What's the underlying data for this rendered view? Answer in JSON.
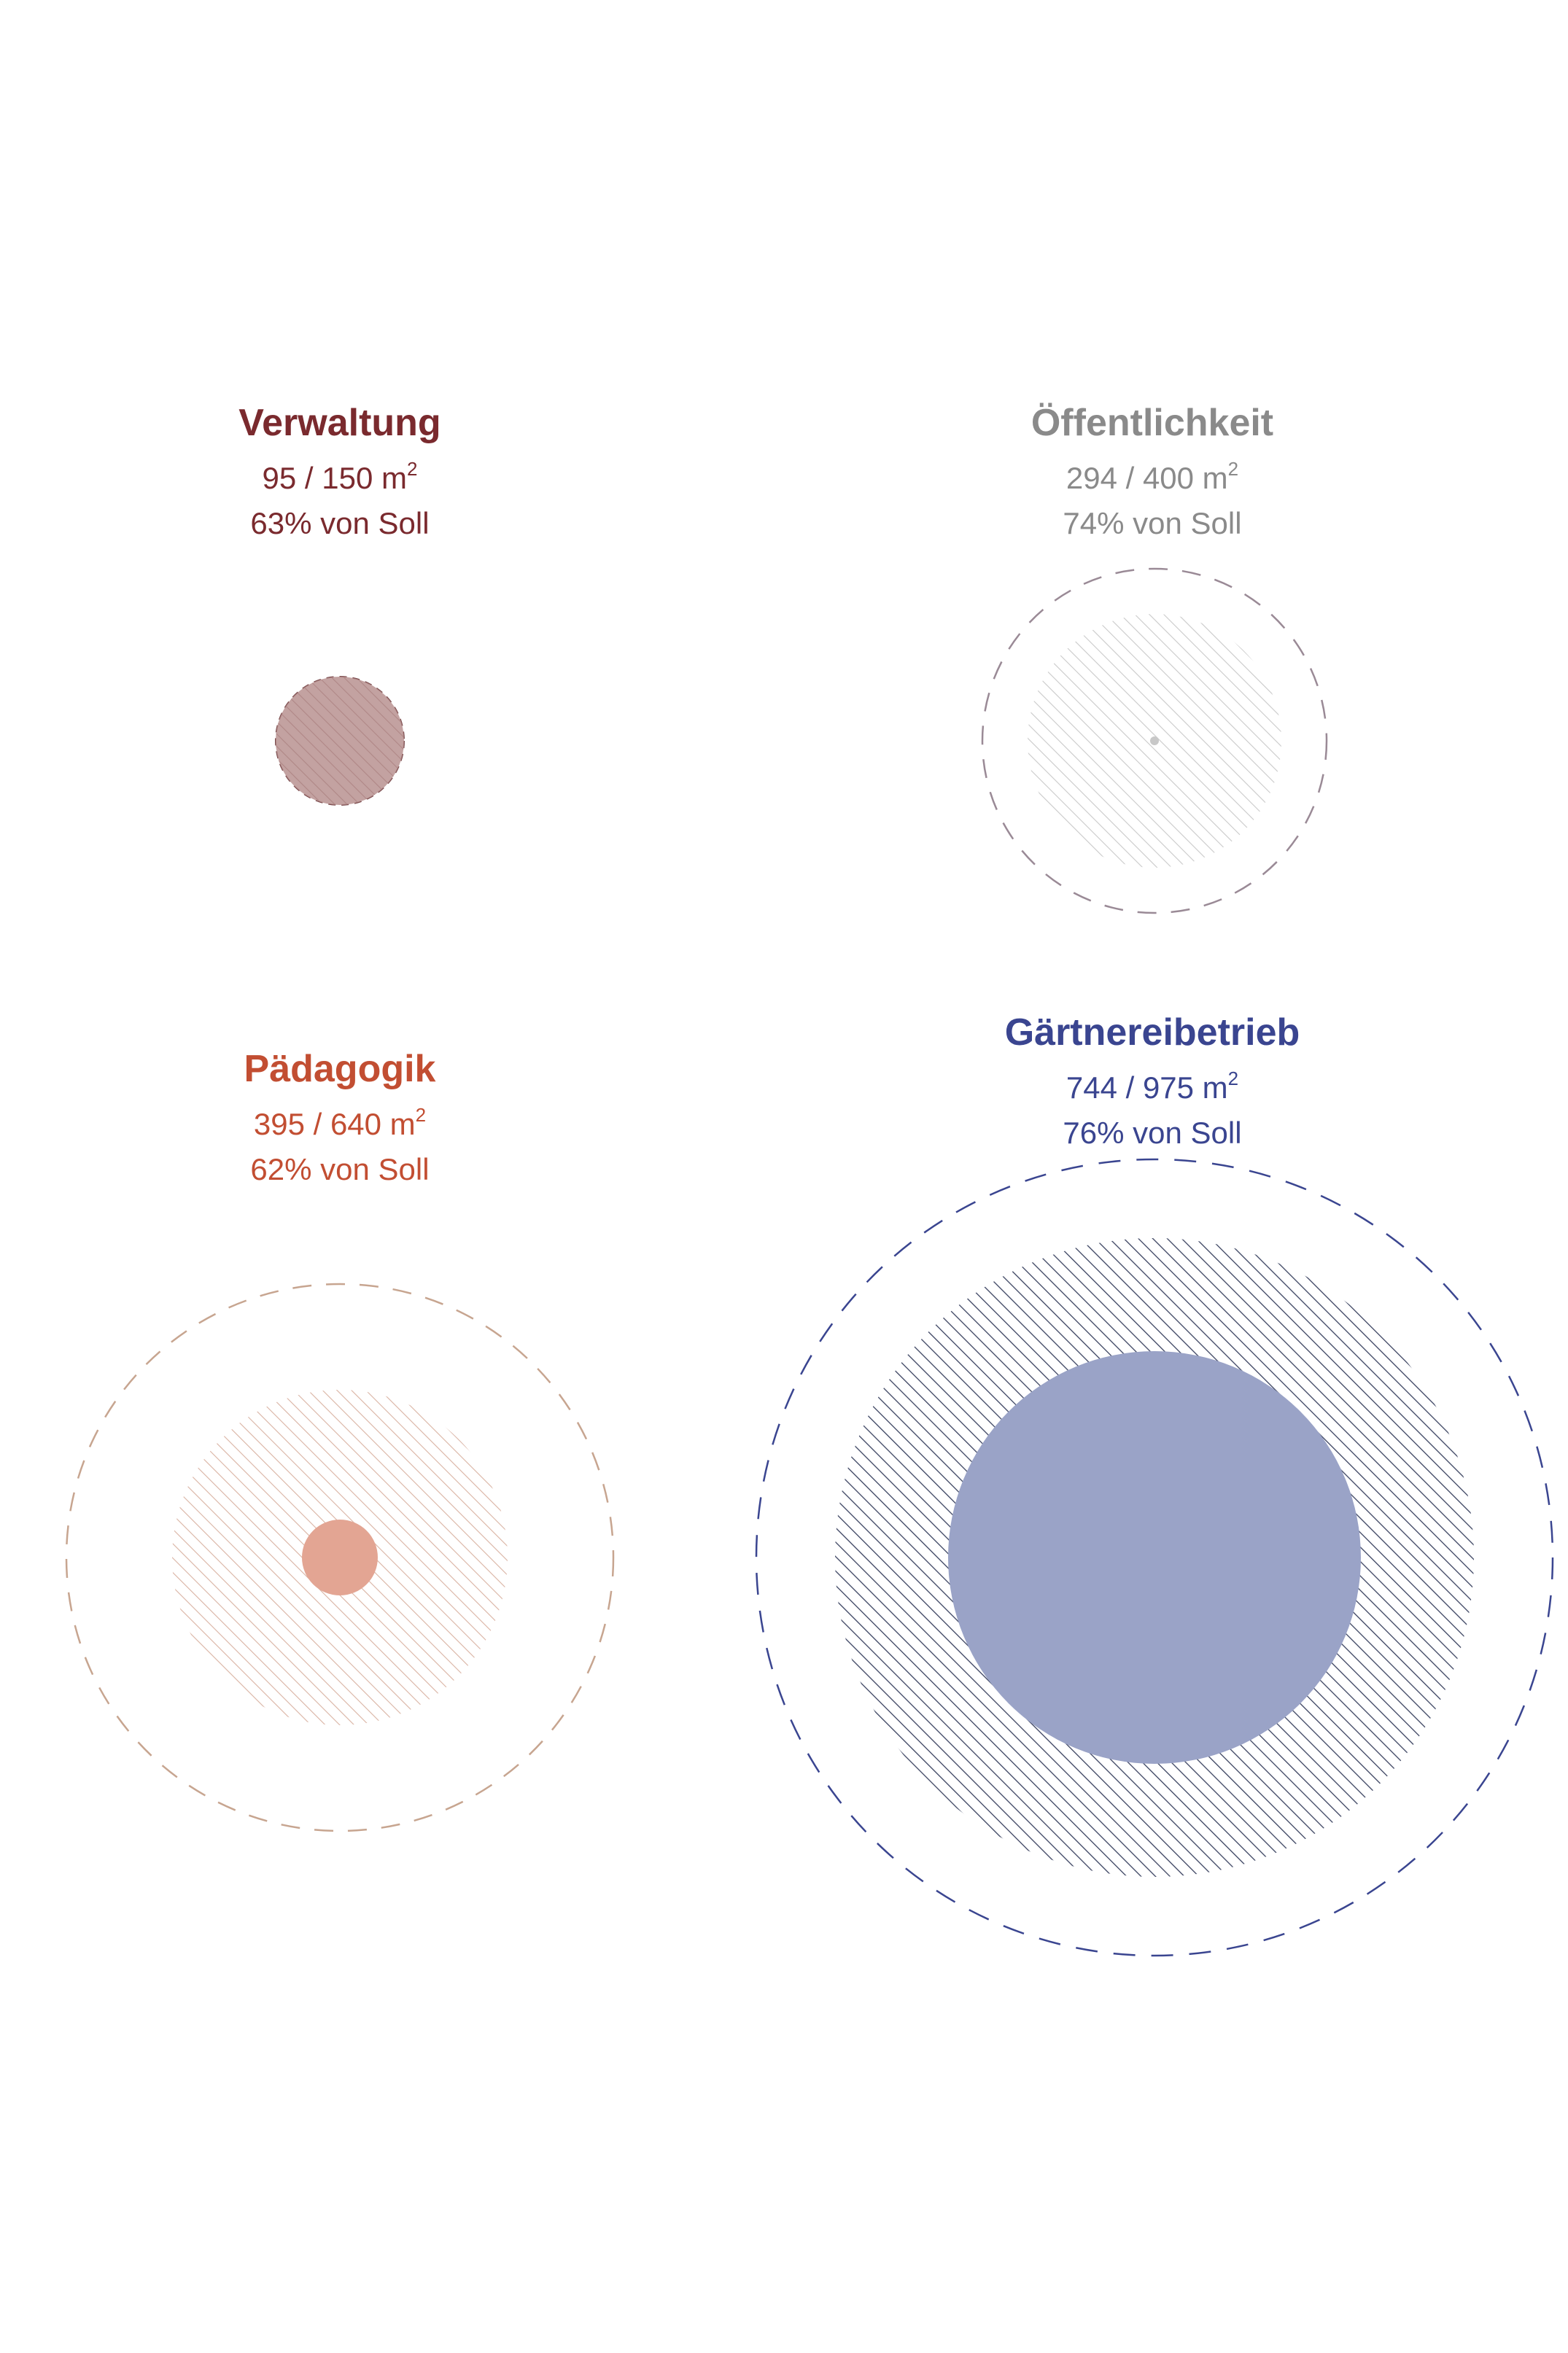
{
  "groups": {
    "verwaltung": {
      "title": "Verwaltung",
      "area": "95 / 150 m",
      "unit_sup": "2",
      "percent": "63% von Soll",
      "ist": 95,
      "soll": 150,
      "color": "#7a2a2e",
      "fill": "#b89290"
    },
    "oeffentlichkeit": {
      "title": "Öffentlichkeit",
      "area": "294 / 400 m",
      "unit_sup": "2",
      "percent": "74% von Soll",
      "ist": 294,
      "soll": 400,
      "color": "#8a8a8a",
      "fill": "#c8c8c8"
    },
    "paedagogik": {
      "title": "Pädagogik",
      "area": "395 / 640 m",
      "unit_sup": "2",
      "percent": "62% von Soll",
      "ist": 395,
      "soll": 640,
      "color": "#c24e32",
      "fill": "#e3a593"
    },
    "gaertnereibetrieb": {
      "title": "Gärtnereibetrieb",
      "area": "744 / 975 m",
      "unit_sup": "2",
      "percent": "76% von Soll",
      "ist": 744,
      "soll": 975,
      "color": "#3a4590",
      "fill": "#9aa3c7"
    }
  }
}
